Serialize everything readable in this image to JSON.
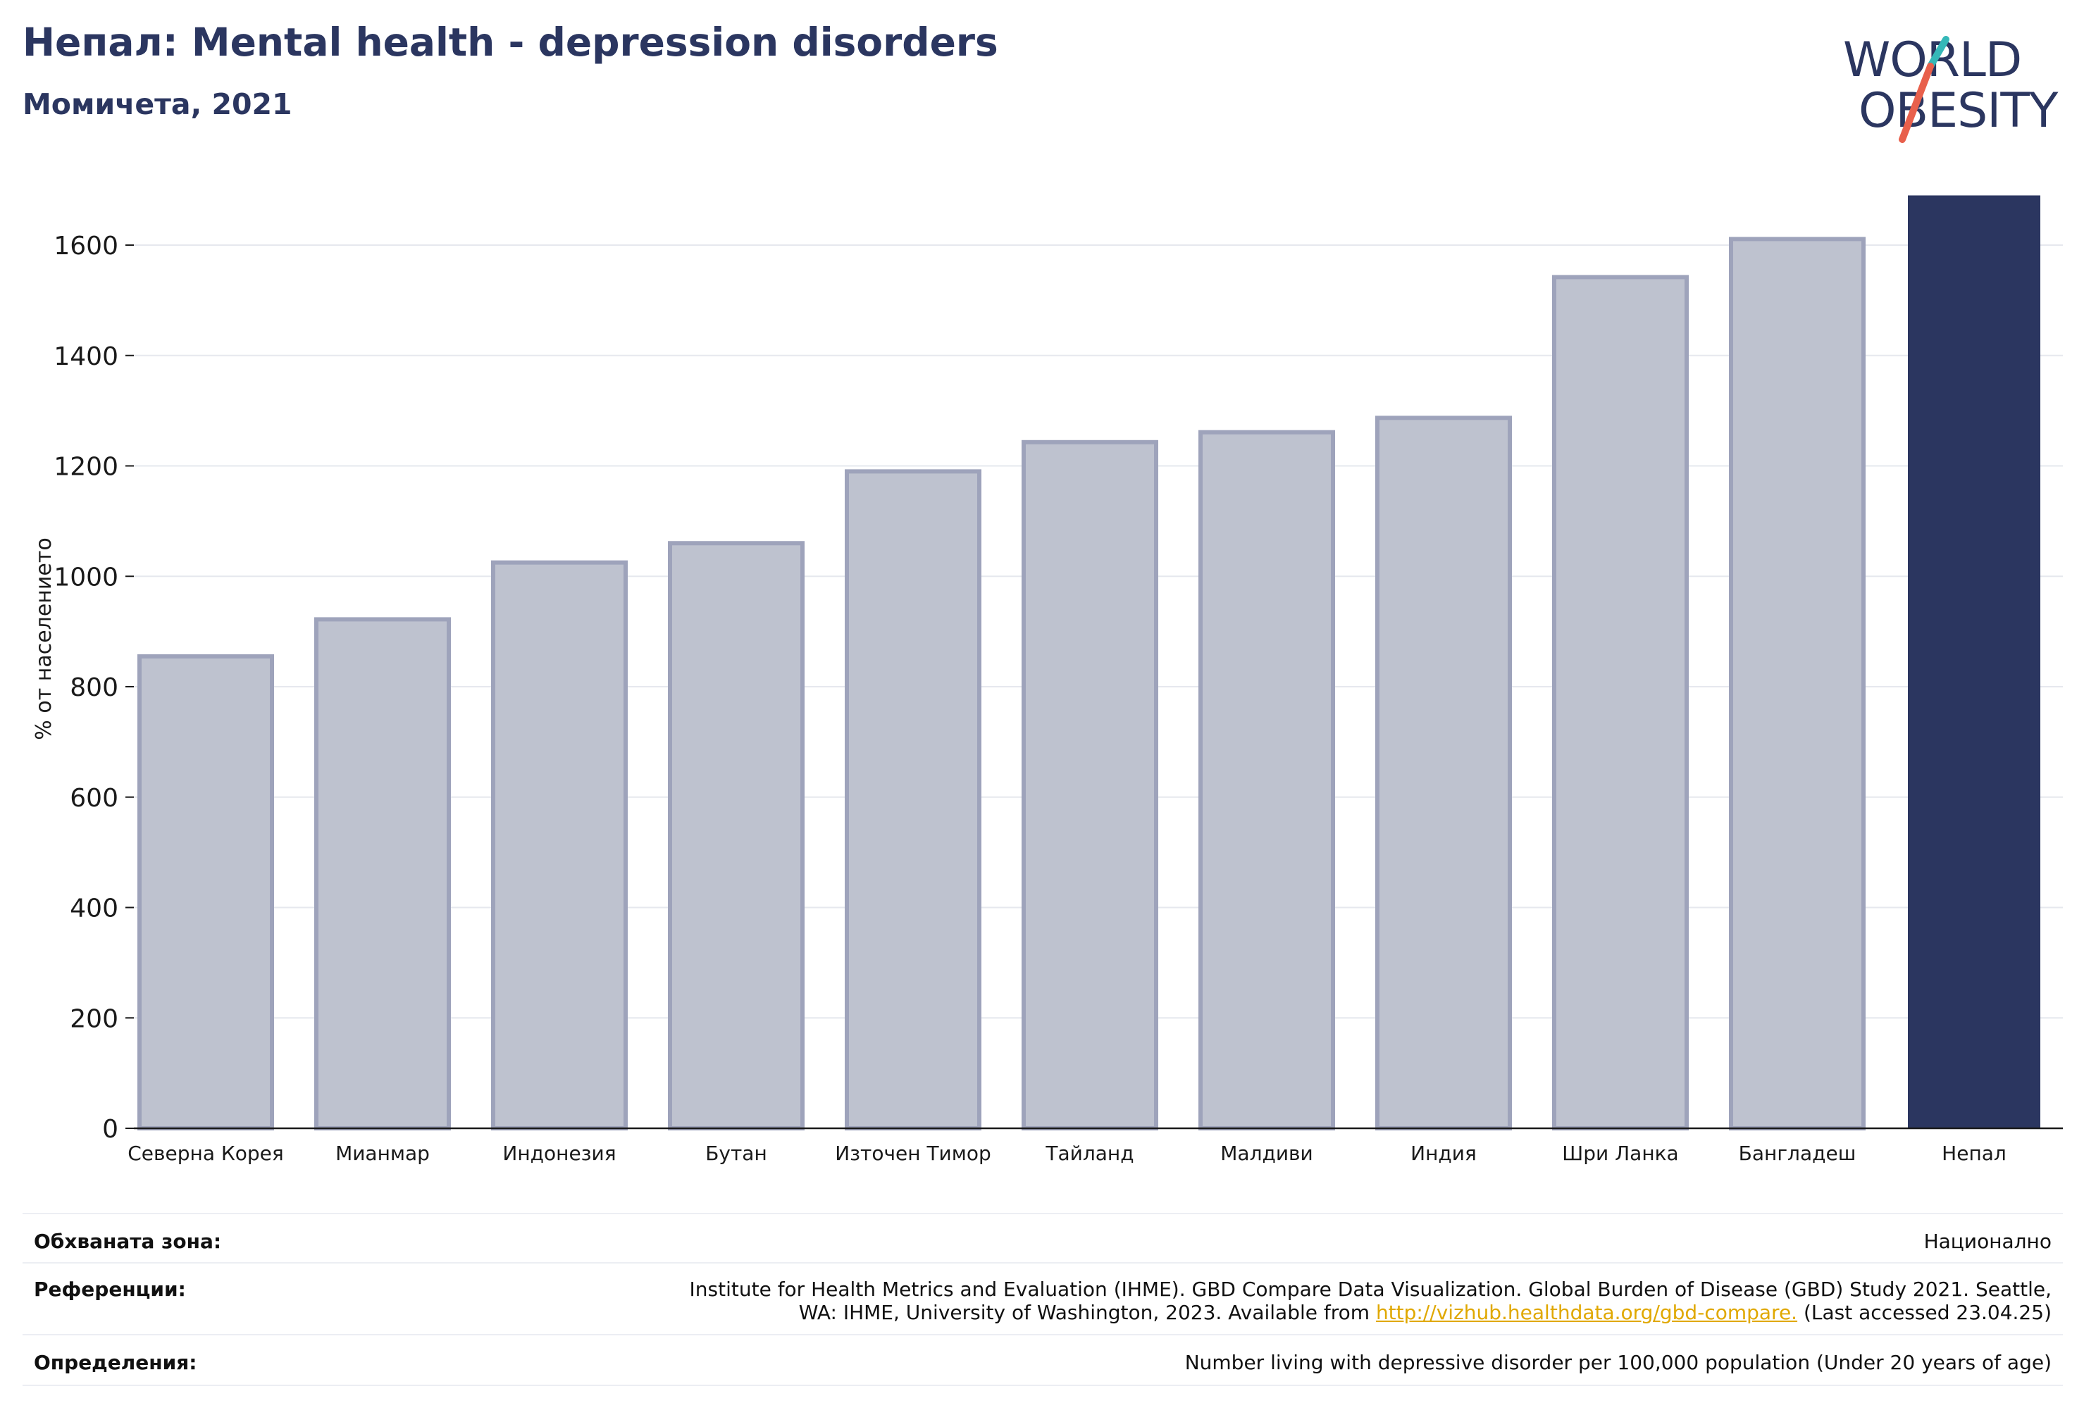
{
  "header": {
    "title": "Непал: Mental health - depression disorders",
    "subtitle": "Момичета, 2021"
  },
  "logo": {
    "line1": "WORLD",
    "line2": "OBESITY",
    "accent_colors": [
      "#35b8b8",
      "#e8604c"
    ]
  },
  "colors": {
    "highlight_bar": "#2b3660",
    "other_bar_fill": "#bec2cf",
    "other_bar_stroke": "#9ea3bb",
    "grid": "#e6e8ee"
  },
  "chart_data": {
    "type": "bar",
    "title": "Непал: Mental health - depression disorders",
    "subtitle": "Момичета, 2021",
    "ylabel": "% от населението",
    "xlabel": "",
    "ylim": [
      0,
      1700
    ],
    "yticks": [
      0,
      200,
      400,
      600,
      800,
      1000,
      1200,
      1400,
      1600
    ],
    "grid": true,
    "categories": [
      "Северна Корея",
      "Мианмар",
      "Индонезия",
      "Бутан",
      "Източен Тимор",
      "Тайланд",
      "Малдиви",
      "Индия",
      "Шри Ланка",
      "Бангладеш",
      "Непал"
    ],
    "values": [
      855,
      922,
      1025,
      1060,
      1190,
      1243,
      1261,
      1287,
      1542,
      1611,
      1690
    ],
    "highlight": "Непал"
  },
  "info": {
    "coverage_label": "Обхваната зона:",
    "coverage_value": "Национално",
    "references_label": "Референции:",
    "references_line1": "Institute for Health Metrics and Evaluation (IHME). GBD Compare Data Visualization. Global Burden of Disease (GBD) Study 2021. Seattle,",
    "references_line2_pre": "WA: IHME, University of Washington, 2023. Available from ",
    "references_link": "http://vizhub.healthdata.org/gbd-compare.",
    "references_line2_post": " (Last accessed 23.04.25)",
    "definitions_label": "Определения:",
    "definitions_value": "Number living with depressive disorder per 100,000 population (Under 20 years of age)"
  }
}
